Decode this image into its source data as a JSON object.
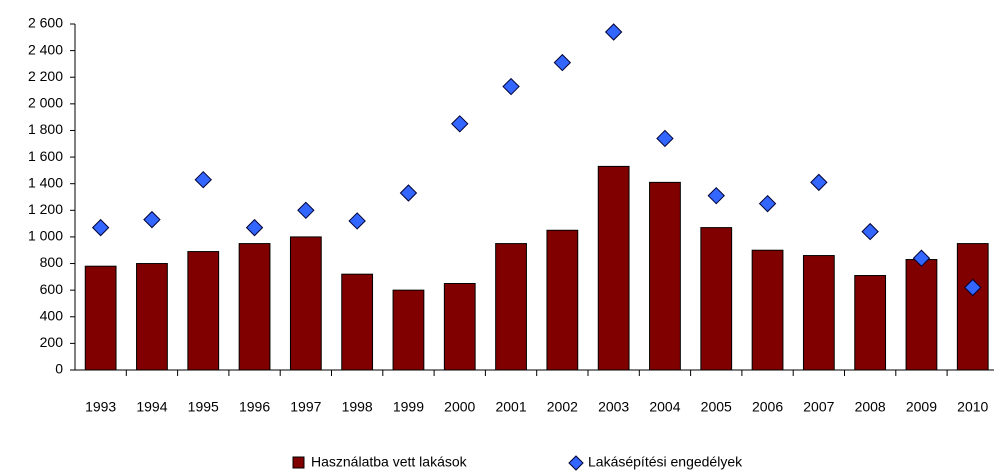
{
  "chart_data": {
    "type": "bar",
    "categories": [
      "1993",
      "1994",
      "1995",
      "1996",
      "1997",
      "1998",
      "1999",
      "2000",
      "2001",
      "2002",
      "2003",
      "2004",
      "2005",
      "2006",
      "2007",
      "2008",
      "2009",
      "2010"
    ],
    "series": [
      {
        "name": "Használatba vett lakások",
        "type": "bar",
        "color": "#800000",
        "values": [
          780,
          800,
          890,
          950,
          1000,
          720,
          600,
          650,
          950,
          1050,
          1530,
          1410,
          1070,
          900,
          860,
          710,
          830,
          950
        ]
      },
      {
        "name": "Lakásépítési engedélyek",
        "type": "scatter",
        "color": "#3366ff",
        "values": [
          1070,
          1130,
          1430,
          1070,
          1200,
          1120,
          1330,
          1850,
          2130,
          2310,
          2540,
          1740,
          1310,
          1250,
          1410,
          1040,
          840,
          620
        ]
      }
    ],
    "ylim": [
      0,
      2600
    ],
    "yticks": [
      0,
      200,
      400,
      600,
      800,
      {
        "value": 1000,
        "label": "1 000"
      },
      {
        "value": 1200,
        "label": "1 200"
      },
      {
        "value": 1400,
        "label": "1 400"
      },
      {
        "value": 1600,
        "label": "1 600"
      },
      {
        "value": 1800,
        "label": "1 800"
      },
      {
        "value": 2000,
        "label": "2 000"
      },
      {
        "value": 2200,
        "label": "2 200"
      },
      {
        "value": 2400,
        "label": "2 400"
      },
      {
        "value": 2600,
        "label": "2 600"
      }
    ],
    "grid": false,
    "legend": "bottom"
  }
}
